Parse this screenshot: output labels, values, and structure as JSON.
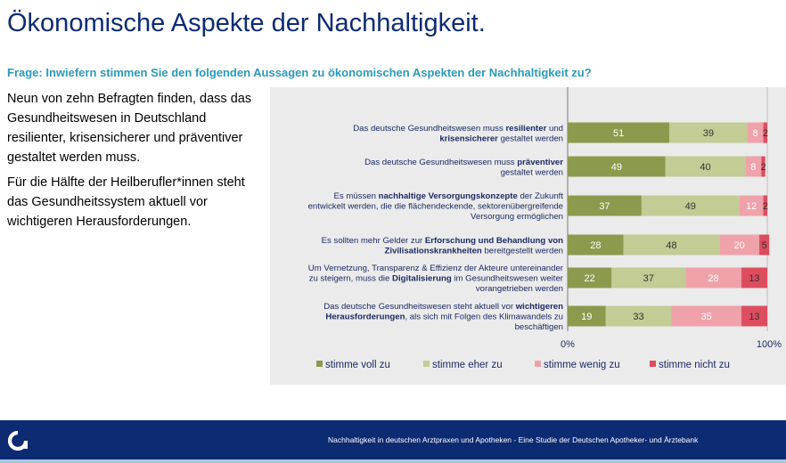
{
  "title": "Ökonomische Aspekte der Nachhaltigkeit.",
  "question": "Frage: Inwiefern stimmen Sie den folgenden Aussagen zu ökonomischen Aspekten der Nachhaltigkeit zu?",
  "left_text": {
    "paragraph_1": "Neun von zehn Befragten finden, dass das Gesundheitswesen in Deutschland resilienter, krisensicherer und präventiver gestaltet werden muss.",
    "paragraph_2": "Für die Hälfte der Heilberufler*innen steht das Gesundheitssystem aktuell vor wichtigeren Herausforderungen."
  },
  "footer": {
    "text": "Nachhaltigkeit in deutschen Arztpraxen und Apotheken - Eine Studie der Deutschen Apotheker- und Ärztebank",
    "logo_icon": "apobank-logo-icon"
  },
  "colors": {
    "brand_navy": "#0d2b73",
    "question_teal": "#2a9ab8",
    "stimme_voll_zu": "#8c9a4e",
    "stimme_eher_zu": "#c2cc94",
    "stimme_wenig_zu": "#efa2aa",
    "stimme_nicht_zu": "#dd4d60"
  },
  "chart_data": {
    "type": "bar",
    "orientation": "horizontal",
    "stacked": true,
    "xlim": [
      0,
      100
    ],
    "x_tick_labels": [
      "0%",
      "100%"
    ],
    "legend_position": "bottom",
    "categories": [
      [
        [
          {
            "t": "Das deutsche Gesundheitswesen muss ",
            "b": false
          },
          {
            "t": "resilienter",
            "b": true
          },
          {
            "t": " und",
            "b": false
          }
        ],
        [
          {
            "t": "krisensicherer",
            "b": true
          },
          {
            "t": " gestaltet werden",
            "b": false
          }
        ]
      ],
      [
        [
          {
            "t": "Das deutsche Gesundheitswesen muss ",
            "b": false
          },
          {
            "t": "präventiver",
            "b": true
          }
        ],
        [
          {
            "t": "gestaltet werden",
            "b": false
          }
        ]
      ],
      [
        [
          {
            "t": "Es müssen ",
            "b": false
          },
          {
            "t": "nachhaltige Versorgungskonzepte",
            "b": true
          },
          {
            "t": " der Zukunft",
            "b": false
          }
        ],
        [
          {
            "t": "entwickelt werden, die die flächendeckende, sektorenübergreifende",
            "b": false
          }
        ],
        [
          {
            "t": "Versorgung ermöglichen",
            "b": false
          }
        ]
      ],
      [
        [
          {
            "t": "Es sollten mehr Gelder zur ",
            "b": false
          },
          {
            "t": "Erforschung und Behandlung von",
            "b": true
          }
        ],
        [
          {
            "t": "Zivilisationskrankheiten",
            "b": true
          },
          {
            "t": " bereitgestellt werden",
            "b": false
          }
        ]
      ],
      [
        [
          {
            "t": "Um Vernetzung, Transparenz & Effizienz der Akteure untereinander",
            "b": false
          }
        ],
        [
          {
            "t": "zu steigern, muss die ",
            "b": false
          },
          {
            "t": "Digitalisierung",
            "b": true
          },
          {
            "t": " im Gesundheitswesen weiter",
            "b": false
          }
        ],
        [
          {
            "t": "vorangetrieben werden",
            "b": false
          }
        ]
      ],
      [
        [
          {
            "t": "Das deutsche Gesundheitswesen steht aktuell vor ",
            "b": false
          },
          {
            "t": "wichtigeren",
            "b": true
          }
        ],
        [
          {
            "t": "Herausforderungen",
            "b": true
          },
          {
            "t": ", als sich mit Folgen des Klimawandels zu",
            "b": false
          }
        ],
        [
          {
            "t": "beschäftigen",
            "b": false
          }
        ]
      ]
    ],
    "series": [
      {
        "name": "stimme voll zu",
        "color": "#8c9a4e",
        "values": [
          51,
          49,
          37,
          28,
          22,
          19
        ]
      },
      {
        "name": "stimme eher zu",
        "color": "#c2cc94",
        "values": [
          39,
          40,
          49,
          48,
          37,
          33
        ]
      },
      {
        "name": "stimme wenig zu",
        "color": "#efa2aa",
        "values": [
          8,
          8,
          12,
          20,
          28,
          35
        ]
      },
      {
        "name": "stimme nicht zu",
        "color": "#dd4d60",
        "values": [
          2,
          2,
          2,
          5,
          13,
          13
        ]
      }
    ]
  }
}
